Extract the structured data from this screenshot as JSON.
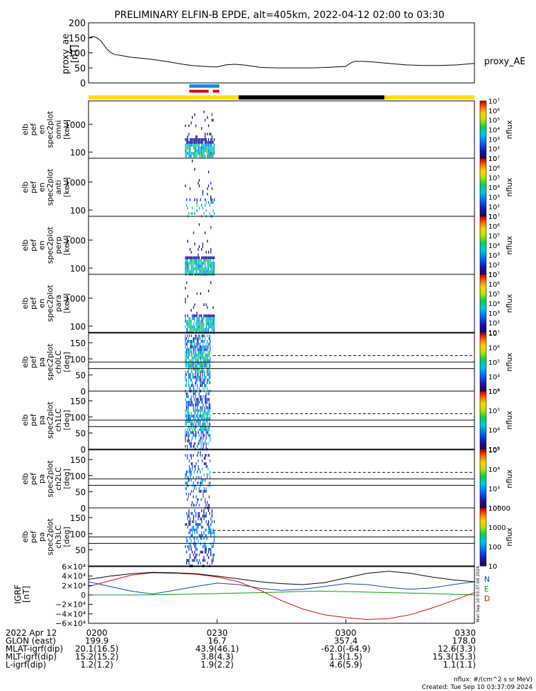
{
  "title": "PRELIMINARY ELFIN-B EPDE, alt=405km, 2022-04-12 02:00 to 03:30",
  "colors": {
    "axis": "#000000",
    "ae": "#000000",
    "bar_yellow": "#ffe000",
    "bar_black": "#000000",
    "bar_blue": "#1e88e5",
    "bar_red": "#e00000",
    "igrf_n": "#1040c0",
    "igrf_e": "#00a000",
    "igrf_d": "#e00000",
    "igrf_total": "#000000"
  },
  "status_bar": {
    "segments": [
      {
        "start": 0,
        "end": 35,
        "color": "yellow"
      },
      {
        "start": 35,
        "end": 69,
        "color": "black"
      },
      {
        "start": 69,
        "end": 90,
        "color": "yellow"
      }
    ],
    "blue_marker": {
      "start": 23.5,
      "end": 30.5
    },
    "red_markers": [
      {
        "start": 23.5,
        "end": 28.0
      },
      {
        "start": 29.0,
        "end": 30.5
      }
    ]
  },
  "chart_data": [
    {
      "type": "line",
      "name": "proxy_ae",
      "ylabel": [
        "proxy_ae",
        "[nT]"
      ],
      "legend": "proxy_AE",
      "ylim": [
        0,
        200
      ],
      "yticks": [
        0,
        50,
        100,
        150,
        200
      ],
      "x_minutes": [
        0,
        1,
        2,
        3,
        4,
        5,
        6,
        8,
        10,
        14,
        18,
        22,
        24,
        26,
        28,
        30,
        32,
        34,
        36,
        40,
        44,
        48,
        52,
        56,
        60,
        61,
        62,
        64,
        66,
        70,
        74,
        78,
        82,
        86,
        90
      ],
      "values": [
        150,
        155,
        150,
        138,
        118,
        103,
        95,
        90,
        85,
        80,
        72,
        62,
        58,
        56,
        54,
        53,
        60,
        62,
        60,
        52,
        50,
        50,
        50,
        52,
        55,
        65,
        72,
        72,
        70,
        65,
        60,
        58,
        58,
        60,
        65
      ]
    },
    {
      "type": "heatmap",
      "name": "elb_pef_en_spec2plot_omni",
      "ylabel": [
        "elb",
        "pef",
        "en",
        "spec2plot",
        "omni",
        "[keV]"
      ],
      "yscale": "log",
      "yticks": [
        100,
        1000
      ],
      "clabel": "nflux",
      "clim": [
        10,
        10000000
      ],
      "cticks": [
        "10",
        "10²",
        "10³",
        "10⁴",
        "10⁵",
        "10⁶",
        "10⁷"
      ],
      "time_range_minutes": [
        22.5,
        29.5
      ]
    },
    {
      "type": "heatmap",
      "name": "elb_pef_en_spec2plot_anti",
      "ylabel": [
        "elb",
        "pef",
        "en",
        "spec2plot",
        "anti",
        "[keV]"
      ],
      "yscale": "log",
      "yticks": [
        100,
        1000
      ],
      "clabel": "nflux",
      "clim": [
        10,
        10000000
      ],
      "cticks": [
        "10",
        "10²",
        "10³",
        "10⁴",
        "10⁵",
        "10⁶",
        "10⁷"
      ],
      "time_range_minutes": [
        22.5,
        29.5
      ]
    },
    {
      "type": "heatmap",
      "name": "elb_pef_en_spec2plot_perp",
      "ylabel": [
        "elb",
        "pef",
        "en",
        "spec2plot",
        "perp",
        "[keV]"
      ],
      "yscale": "log",
      "yticks": [
        100,
        1000
      ],
      "clabel": "nflux",
      "clim": [
        10,
        10000000
      ],
      "cticks": [
        "10",
        "10²",
        "10³",
        "10⁴",
        "10⁵",
        "10⁶",
        "10⁷"
      ],
      "time_range_minutes": [
        22.5,
        29.5
      ]
    },
    {
      "type": "heatmap",
      "name": "elb_pef_en_spec2plot_para",
      "ylabel": [
        "elb",
        "pef",
        "en",
        "spec2plot",
        "para",
        "[keV]"
      ],
      "yscale": "log",
      "yticks": [
        100,
        1000
      ],
      "clabel": "nflux",
      "clim": [
        10,
        10000000
      ],
      "cticks": [
        "10",
        "10²",
        "10³",
        "10⁴",
        "10⁵",
        "10⁶",
        "10⁷"
      ],
      "time_range_minutes": [
        22.5,
        29.5
      ]
    },
    {
      "type": "heatmap",
      "name": "elb_pef_pa_spec2plot_ch0LC",
      "ylabel": [
        "elb",
        "pef",
        "pa",
        "spec2plot",
        "ch0LC",
        "[deg]"
      ],
      "ylim": [
        0,
        180
      ],
      "yticks": [
        0,
        50,
        100,
        150
      ],
      "clabel": "nflux",
      "clim": [
        1000,
        10000000
      ],
      "cticks": [
        "10³",
        "10⁴",
        "10⁵",
        "10⁶",
        "10⁷"
      ],
      "time_range_minutes": [
        22.5,
        28.5
      ],
      "solid_lines": [
        70,
        90
      ],
      "dashed_lines": [
        110
      ]
    },
    {
      "type": "heatmap",
      "name": "elb_pef_pa_spec2plot_ch1LC",
      "ylabel": [
        "elb",
        "pef",
        "pa",
        "spec2plot",
        "ch1LC",
        "[deg]"
      ],
      "ylim": [
        0,
        180
      ],
      "yticks": [
        0,
        50,
        100,
        150
      ],
      "clabel": "nflux",
      "clim": [
        1000,
        1000000
      ],
      "cticks": [
        "10³",
        "10⁴",
        "10⁵",
        "10⁶"
      ],
      "time_range_minutes": [
        22.5,
        28.5
      ],
      "solid_lines": [
        70,
        90
      ],
      "dashed_lines": [
        110
      ]
    },
    {
      "type": "heatmap",
      "name": "elb_pef_pa_spec2plot_ch2LC",
      "ylabel": [
        "elb",
        "pef",
        "pa",
        "spec2plot",
        "ch2LC",
        "[deg]"
      ],
      "ylim": [
        0,
        180
      ],
      "yticks": [
        0,
        50,
        100,
        150
      ],
      "clabel": "nflux",
      "clim": [
        100,
        1000000
      ],
      "cticks": [
        "10²",
        "10³",
        "10⁴",
        "10⁵"
      ],
      "time_range_minutes": [
        22.5,
        28.5
      ],
      "solid_lines": [
        70,
        90
      ],
      "dashed_lines": [
        110
      ]
    },
    {
      "type": "heatmap",
      "name": "elb_pef_pa_spec2plot_ch3LC",
      "ylabel": [
        "elb",
        "pef",
        "pa",
        "spec2plot",
        "ch3LC",
        "[deg]"
      ],
      "ylim": [
        0,
        180
      ],
      "yticks": [
        50,
        100,
        150
      ],
      "clabel": "nflux",
      "clim": [
        10,
        10000
      ],
      "cticks": [
        "10",
        "100",
        "1000",
        "10000"
      ],
      "time_range_minutes": [
        22.5,
        29.5
      ],
      "solid_lines": [
        70,
        90
      ],
      "dashed_lines": [
        110
      ]
    },
    {
      "type": "line",
      "name": "igrf",
      "ylabel": [
        "IGRF",
        "[nT]"
      ],
      "ylim": [
        -60000,
        60000
      ],
      "ytick_values": [
        -60000,
        -40000,
        -20000,
        0,
        20000,
        40000,
        60000
      ],
      "yticks": [
        "−6×10⁴",
        "−4×10⁴",
        "−2×10⁴",
        "0",
        "2×10⁴",
        "4×10⁴",
        "6×10⁴"
      ],
      "legend": [
        "N",
        "E",
        "D"
      ],
      "x_minutes": [
        0,
        5,
        10,
        15,
        20,
        25,
        30,
        35,
        40,
        45,
        50,
        55,
        60,
        65,
        70,
        75,
        80,
        85,
        90
      ],
      "series": [
        {
          "name": "N",
          "color": "#1040c0",
          "values": [
            28000,
            18000,
            8000,
            2000,
            10000,
            18000,
            25000,
            22000,
            14000,
            10000,
            12000,
            18000,
            24000,
            22000,
            16000,
            12000,
            15000,
            22000,
            28000
          ]
        },
        {
          "name": "E",
          "color": "#00a000",
          "values": [
            0,
            0,
            0,
            500,
            1000,
            2000,
            3000,
            4000,
            5000,
            6000,
            7500,
            8000,
            7000,
            6000,
            5000,
            4000,
            3000,
            1500,
            0
          ]
        },
        {
          "name": "D",
          "color": "#e00000",
          "values": [
            18000,
            30000,
            42000,
            47000,
            46000,
            44000,
            38000,
            28000,
            10000,
            -12000,
            -30000,
            -42000,
            -48000,
            -52000,
            -50000,
            -42000,
            -28000,
            -12000,
            5000
          ]
        },
        {
          "name": "total",
          "color": "#000000",
          "values": [
            33000,
            40000,
            45000,
            48000,
            47000,
            45000,
            40000,
            34000,
            28000,
            24000,
            22000,
            26000,
            36000,
            46000,
            50000,
            46000,
            38000,
            32000,
            28000
          ]
        }
      ]
    }
  ],
  "time_ticks": {
    "minutes": [
      0,
      30,
      60,
      90
    ],
    "labels": [
      "0200",
      "0230",
      "0300",
      "0330"
    ]
  },
  "igrf_side_label": "Mon Sep 10 03:37:08 2024",
  "ephemeris": {
    "rows": [
      {
        "label": "2022 Apr 12",
        "values": [
          "0200",
          "0230",
          "0300",
          "0330"
        ]
      },
      {
        "label": "GLON (east)",
        "values": [
          "199.9",
          "16.7",
          "357.4",
          "178.0"
        ]
      },
      {
        "label": "MLAT-igrf(dip)",
        "values": [
          "20.1(16.5)",
          "43.9(46.1)",
          "-62.0(-64.9)",
          "12.6(3.3)"
        ]
      },
      {
        "label": "MLT-igrf(dip)",
        "values": [
          "15.2(15.2)",
          "3.8(4.3)",
          "1.3(1.5)",
          "15.3(15.3)"
        ]
      },
      {
        "label": "L-igrf(dip)",
        "values": [
          "1.2(1.2)",
          "1.9(2.2)",
          "4.6(5.9)",
          "1.1(1.1)"
        ]
      }
    ]
  },
  "footer": {
    "units": "nflux: #/(cm^2 s sr MeV)",
    "created": "Created: Tue Sep 10 03:37:09 2024"
  }
}
